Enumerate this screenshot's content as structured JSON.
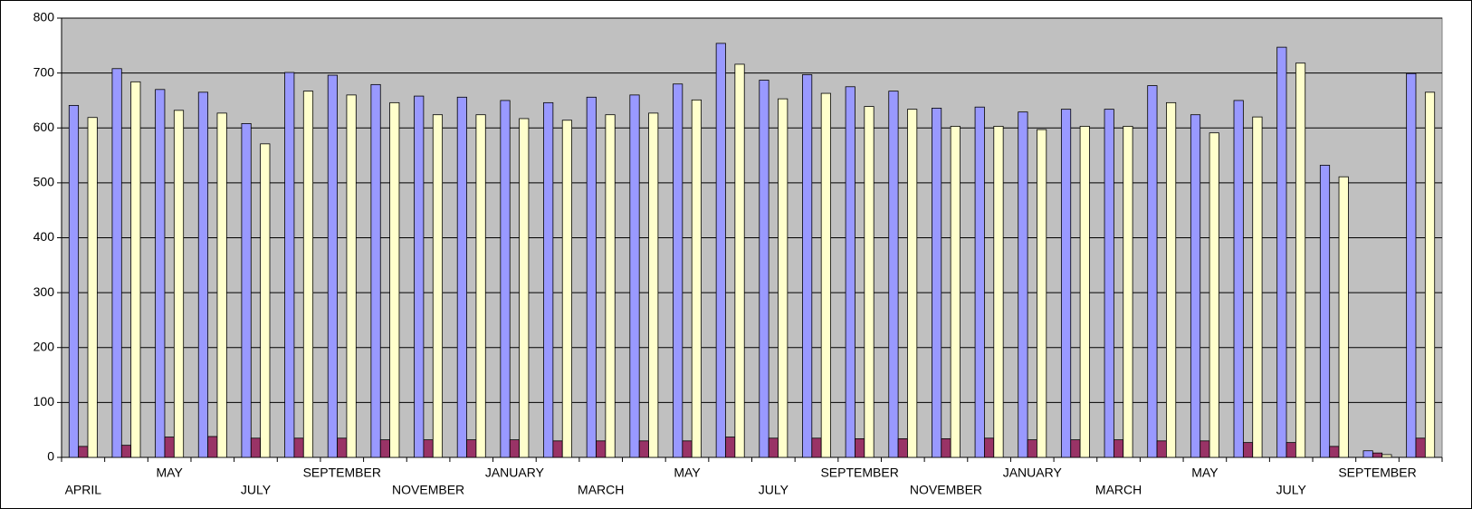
{
  "chart_data": {
    "type": "bar",
    "categories": [
      "APRIL",
      null,
      "MAY",
      null,
      "JULY",
      null,
      "SEPTEMBER",
      null,
      "NOVEMBER",
      null,
      "JANUARY",
      null,
      "MARCH",
      null,
      "MAY",
      null,
      "JULY",
      null,
      "SEPTEMBER",
      null,
      "NOVEMBER",
      null,
      "JANUARY",
      null,
      "MARCH",
      null,
      "MAY",
      null,
      "JULY",
      null,
      "SEPTEMBER",
      null
    ],
    "series": [
      {
        "color": "#9999ff",
        "values": [
          641,
          708,
          670,
          665,
          608,
          701,
          696,
          679,
          658,
          656,
          650,
          646,
          656,
          660,
          680,
          754,
          687,
          697,
          675,
          667,
          636,
          638,
          629,
          634,
          634,
          677,
          624,
          650,
          747,
          532,
          12,
          699
        ]
      },
      {
        "color": "#993366",
        "values": [
          20,
          22,
          37,
          38,
          35,
          35,
          35,
          32,
          32,
          32,
          32,
          30,
          30,
          30,
          30,
          37,
          35,
          35,
          34,
          34,
          34,
          35,
          32,
          32,
          32,
          30,
          30,
          27,
          27,
          20,
          8,
          35
        ]
      },
      {
        "color": "#ffffcc",
        "values": [
          619,
          684,
          632,
          627,
          571,
          667,
          660,
          646,
          624,
          624,
          617,
          614,
          624,
          627,
          651,
          716,
          653,
          663,
          639,
          634,
          603,
          603,
          597,
          603,
          603,
          646,
          591,
          620,
          718,
          511,
          5,
          665
        ]
      }
    ],
    "ylim": [
      0,
      800
    ],
    "yticks": [
      0,
      100,
      200,
      300,
      400,
      500,
      600,
      700,
      800
    ],
    "grid": true,
    "plot_background": "#c0c0c0"
  }
}
